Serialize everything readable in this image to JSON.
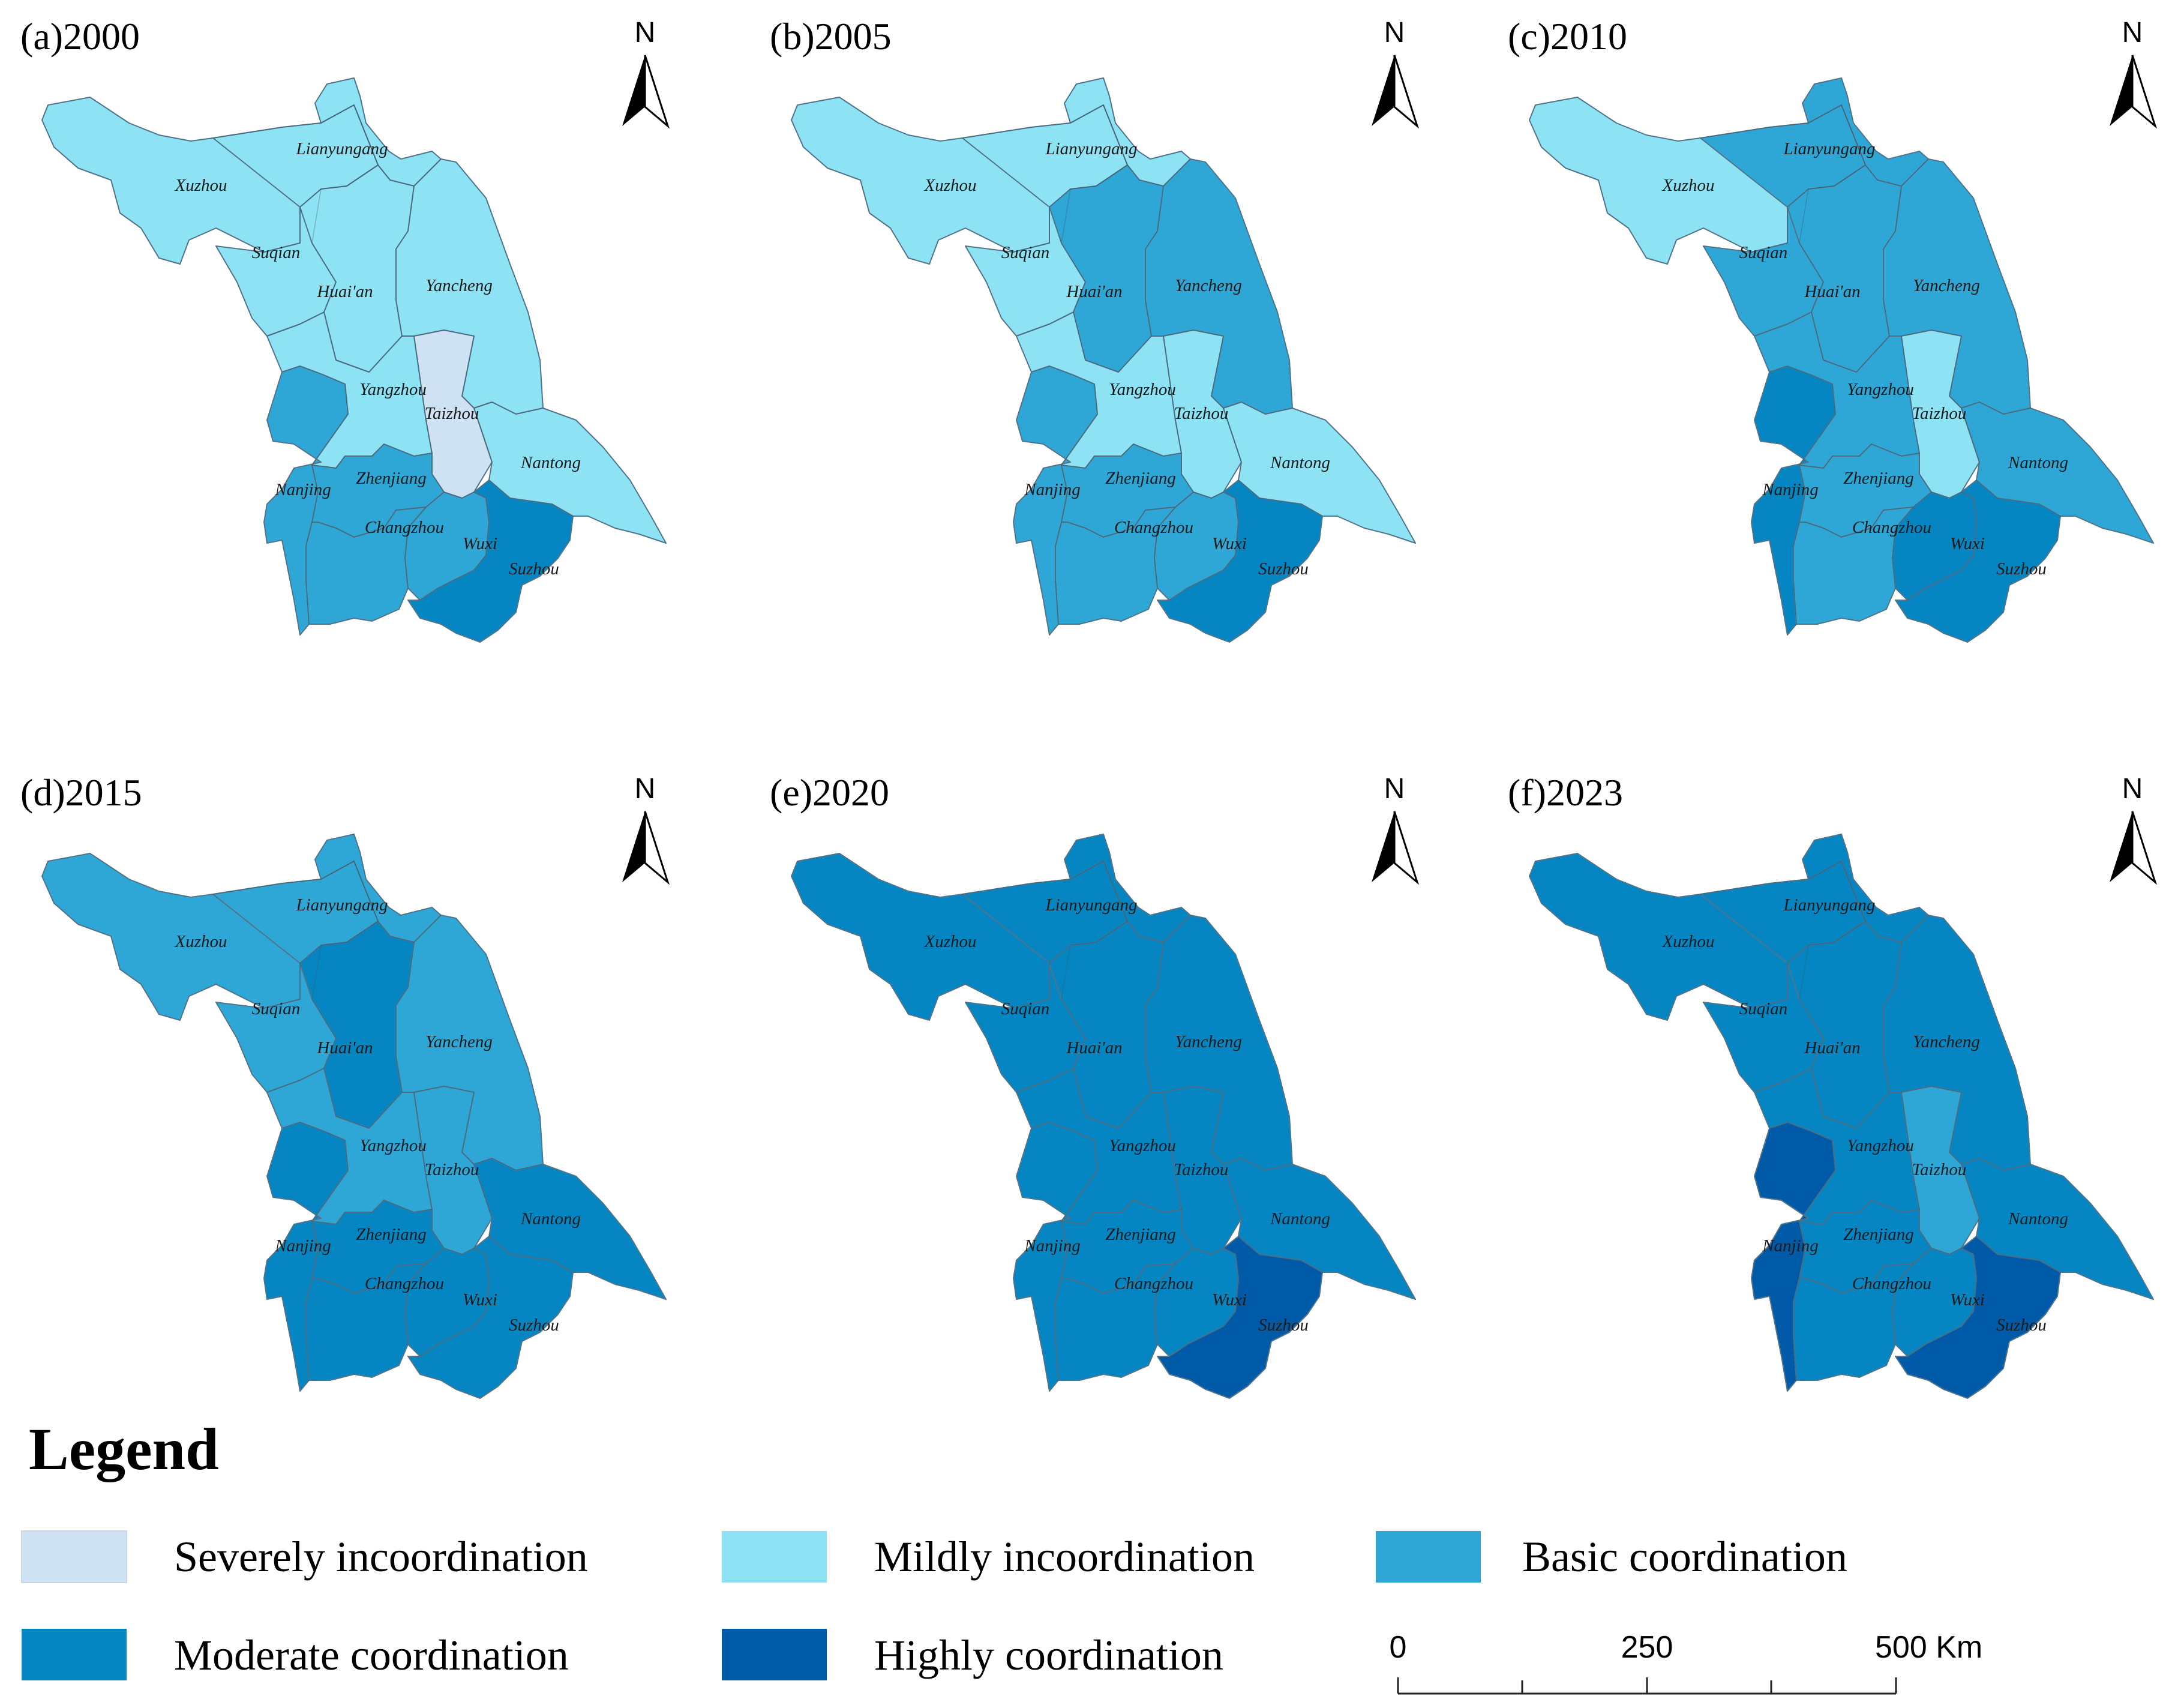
{
  "panels": [
    {
      "label": "(a)2000",
      "classes": {
        "Xuzhou": "mild",
        "Lianyungang": "mild",
        "Suqian": "mild",
        "Huaian": "mild",
        "Yancheng": "mild",
        "Yangzhou": "mild",
        "Taizhou": "severe",
        "Nantong": "mild",
        "Nanjing": "basic",
        "Zhenjiang": "basic",
        "Changzhou": "basic",
        "Wuxi": "basic",
        "Suzhou": "moderate"
      }
    },
    {
      "label": "(b)2005",
      "classes": {
        "Xuzhou": "mild",
        "Lianyungang": "mild",
        "Suqian": "mild",
        "Huaian": "basic",
        "Yancheng": "basic",
        "Yangzhou": "mild",
        "Taizhou": "mild",
        "Nantong": "mild",
        "Nanjing": "basic",
        "Zhenjiang": "basic",
        "Changzhou": "basic",
        "Wuxi": "basic",
        "Suzhou": "moderate"
      }
    },
    {
      "label": "(c)2010",
      "classes": {
        "Xuzhou": "mild",
        "Lianyungang": "basic",
        "Suqian": "basic",
        "Huaian": "basic",
        "Yancheng": "basic",
        "Yangzhou": "basic",
        "Taizhou": "mild",
        "Nantong": "basic",
        "Nanjing": "moderate",
        "Zhenjiang": "basic",
        "Changzhou": "basic",
        "Wuxi": "moderate",
        "Suzhou": "moderate"
      }
    },
    {
      "label": "(d)2015",
      "classes": {
        "Xuzhou": "basic",
        "Lianyungang": "basic",
        "Suqian": "basic",
        "Huaian": "moderate",
        "Yancheng": "basic",
        "Yangzhou": "basic",
        "Taizhou": "basic",
        "Nantong": "moderate",
        "Nanjing": "moderate",
        "Zhenjiang": "moderate",
        "Changzhou": "moderate",
        "Wuxi": "moderate",
        "Suzhou": "moderate"
      }
    },
    {
      "label": "(e)2020",
      "classes": {
        "Xuzhou": "moderate",
        "Lianyungang": "moderate",
        "Suqian": "moderate",
        "Huaian": "moderate",
        "Yancheng": "moderate",
        "Yangzhou": "moderate",
        "Taizhou": "moderate",
        "Nantong": "moderate",
        "Nanjing": "moderate",
        "Zhenjiang": "moderate",
        "Changzhou": "moderate",
        "Wuxi": "moderate",
        "Suzhou": "high"
      }
    },
    {
      "label": "(f)2023",
      "classes": {
        "Xuzhou": "moderate",
        "Lianyungang": "moderate",
        "Suqian": "moderate",
        "Huaian": "moderate",
        "Yancheng": "moderate",
        "Yangzhou": "moderate",
        "Taizhou": "basic",
        "Nantong": "moderate",
        "Nanjing": "high",
        "Zhenjiang": "moderate",
        "Changzhou": "moderate",
        "Wuxi": "moderate",
        "Suzhou": "high"
      }
    }
  ],
  "city_names": {
    "Xuzhou": "Xuzhou",
    "Lianyungang": "Lianyungang",
    "Suqian": "Suqian",
    "Huaian": "Huai'an",
    "Yancheng": "Yancheng",
    "Yangzhou": "Yangzhou",
    "Taizhou": "Taizhou",
    "Nantong": "Nantong",
    "Nanjing": "Nanjing",
    "Zhenjiang": "Zhenjiang",
    "Changzhou": "Changzhou",
    "Wuxi": "Wuxi",
    "Suzhou": "Suzhou"
  },
  "north_arrow_label": "N",
  "legend": {
    "title": "Legend",
    "items": [
      {
        "key": "severe",
        "label": "Severely incoordination",
        "color": "#cfe2f3"
      },
      {
        "key": "mild",
        "label": "Mildly incoordination",
        "color": "#8de3f4"
      },
      {
        "key": "basic",
        "label": "Basic coordination",
        "color": "#2ea7d6"
      },
      {
        "key": "moderate",
        "label": "Moderate coordination",
        "color": "#0586c3"
      },
      {
        "key": "high",
        "label": "Highly coordination",
        "color": "#005aa8"
      }
    ]
  },
  "scale_bar": {
    "ticks": [
      "0",
      "250",
      "500 Km"
    ]
  }
}
